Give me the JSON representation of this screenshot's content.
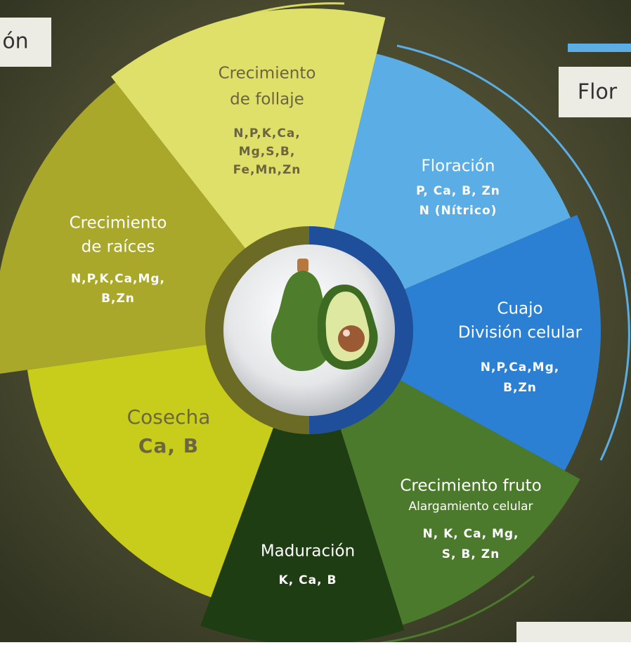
{
  "side_labels": {
    "top_left": "ón",
    "top_right": "Flor"
  },
  "segments": [
    {
      "title": [
        "Crecimiento",
        "de follaje"
      ],
      "nutrients": [
        "N,P,K,Ca,",
        "Mg,S,B,",
        "Fe,Mn,Zn"
      ]
    },
    {
      "title": [
        "Floración"
      ],
      "nutrients": [
        "P, Ca, B, Zn",
        "N (Nítrico)"
      ]
    },
    {
      "title": [
        "Cuajo",
        "División celular"
      ],
      "nutrients": [
        "N,P,Ca,Mg,",
        "B,Zn"
      ]
    },
    {
      "title": [
        "Crecimiento fruto"
      ],
      "subtitle": "Alargamiento celular",
      "nutrients": [
        "N, K, Ca, Mg,",
        "S, B, Zn"
      ]
    },
    {
      "title": [
        "Maduración"
      ],
      "nutrients": [
        "K, Ca, B"
      ]
    },
    {
      "title": [
        "Cosecha"
      ],
      "nutrients": [
        "Ca, B"
      ]
    },
    {
      "title": [
        "Crecimiento",
        "de raíces"
      ],
      "nutrients": [
        "N,P,K,Ca,Mg,",
        "B,Zn"
      ]
    }
  ]
}
